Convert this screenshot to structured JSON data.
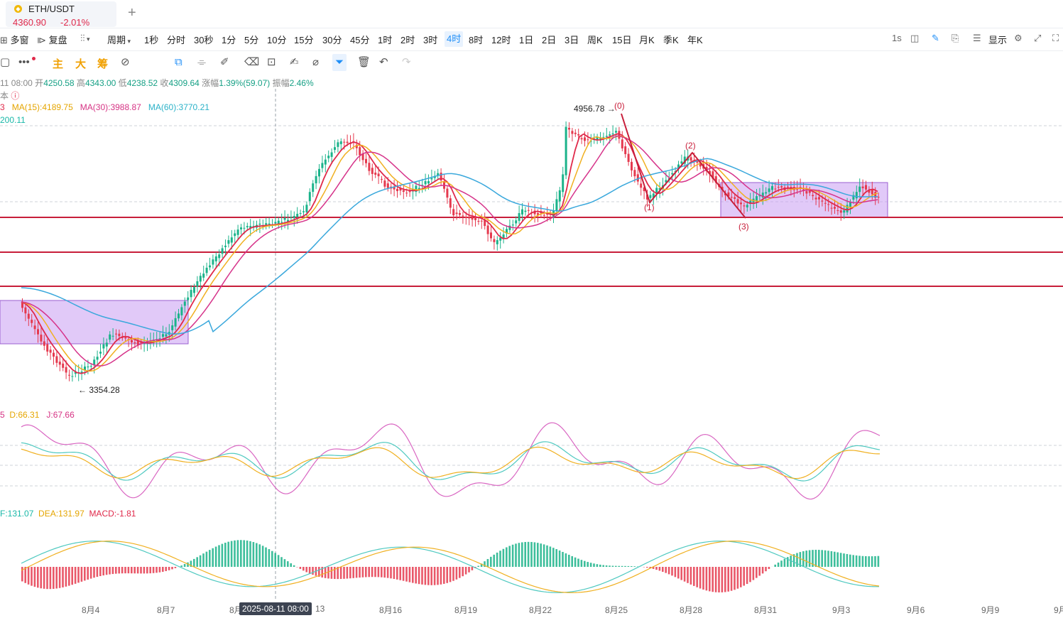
{
  "tab": {
    "symbol": "ETH/USDT",
    "price": "4360.90",
    "change": "-2.01%",
    "coin_icon": "eth-coin-icon",
    "add_icon": "+"
  },
  "toolbar": {
    "multi": "多窗",
    "replay": "复盘",
    "chart_type_icon": "candlestick-icon",
    "period": "周期",
    "periods": [
      "1秒",
      "分时",
      "30秒",
      "1分",
      "5分",
      "10分",
      "15分",
      "30分",
      "45分",
      "1时",
      "2时",
      "3时",
      "4时",
      "8时",
      "12时",
      "1日",
      "2日",
      "3日",
      "周K",
      "15日",
      "月K",
      "季K",
      "年K"
    ],
    "active_period": "4时",
    "right_1s": "1s",
    "display": "显示"
  },
  "drawbar": {
    "main": "主",
    "big": "大",
    "chips": "筹"
  },
  "ohlc": {
    "date": "11 08:00",
    "open_label": "开",
    "open": "4250.58",
    "high_label": "高",
    "high": "4343.00",
    "low_label": "低",
    "low": "4238.52",
    "close_label": "收",
    "close": "4309.64",
    "chg_label": "涨幅",
    "chg": "1.39%(59.07)",
    "amp_label": "振幅",
    "amp": "2.46%"
  },
  "line2": {
    "text": "本"
  },
  "ma": {
    "ma_first_tail": "3",
    "ma15": "MA(15):4189.75",
    "ma30": "MA(30):3988.87",
    "ma60": "MA(60):3770.21"
  },
  "boll": {
    "tail": "200.11"
  },
  "kdj": {
    "k_tail": "5",
    "d": "D:66.31",
    "j": "J:67.66"
  },
  "macd": {
    "dif_tail": "F:131.07",
    "dea": "DEA:131.97",
    "macd": "MACD:-1.81"
  },
  "annotations": {
    "high_price": "4956.78",
    "low_price": "3354.28",
    "wave0": "(0)",
    "wave1": "(1)",
    "wave2": "(2)",
    "wave3": "(3)"
  },
  "xaxis": {
    "labels": [
      "8月4",
      "8月7",
      "8月",
      "13",
      "8月16",
      "8月19",
      "8月22",
      "8月25",
      "8月28",
      "8月31",
      "9月3",
      "9月6",
      "9月9",
      "9月"
    ],
    "crosshair": "2025-08-11 08:00"
  },
  "colors": {
    "up": "#1bb38a",
    "down": "#e5394e",
    "ma_red": "#e0294a",
    "ma_orange": "#f0b020",
    "ma_pink": "#d6338a",
    "ma_blue": "#3aa8dc",
    "box": "#c99cf2",
    "hline": "#c81e3a"
  }
}
